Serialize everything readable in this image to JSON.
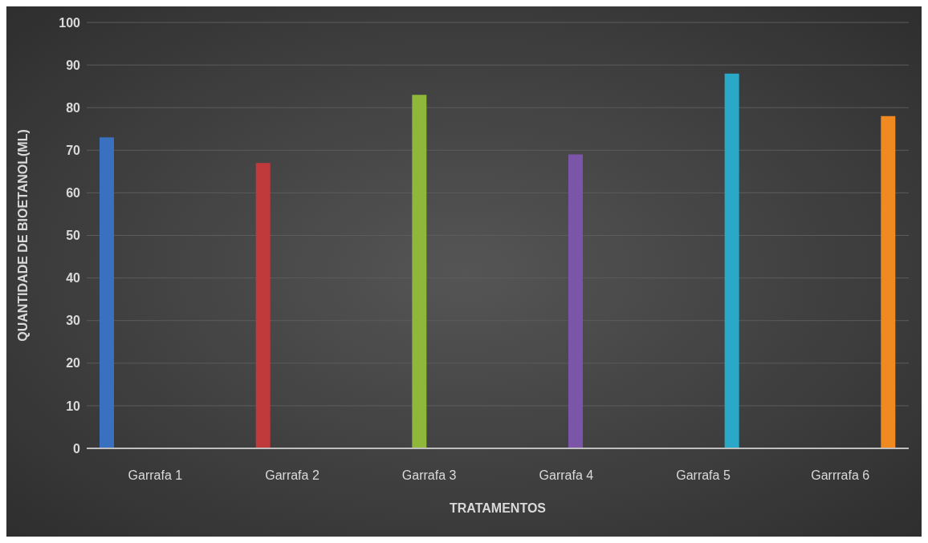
{
  "chart_data": {
    "type": "bar",
    "xlabel": "TRATAMENTOS",
    "ylabel": "QUANTIDADE DE BIOETANOL(ML)",
    "categories": [
      "Garrafa 1",
      "Garrafa 2",
      "Garrafa 3",
      "Garrafa 4",
      "Garrafa 5",
      "Garrrafa 6"
    ],
    "series": [
      {
        "color": "#3a70c0",
        "values": [
          73,
          null,
          null,
          null,
          null,
          null
        ]
      },
      {
        "color": "#c0393b",
        "values": [
          null,
          67,
          null,
          null,
          null,
          null
        ]
      },
      {
        "color": "#8fb83a",
        "values": [
          null,
          null,
          83,
          null,
          null,
          null
        ]
      },
      {
        "color": "#7a55a8",
        "values": [
          null,
          null,
          null,
          69,
          null,
          null
        ]
      },
      {
        "color": "#2aa8c8",
        "values": [
          null,
          null,
          null,
          null,
          88,
          null
        ]
      },
      {
        "color": "#f08a20",
        "values": [
          null,
          null,
          null,
          null,
          null,
          78
        ]
      }
    ],
    "ylim": [
      0,
      100
    ],
    "yticks": [
      0,
      10,
      20,
      30,
      40,
      50,
      60,
      70,
      80,
      90,
      100
    ],
    "grid": "y",
    "legend": false
  }
}
